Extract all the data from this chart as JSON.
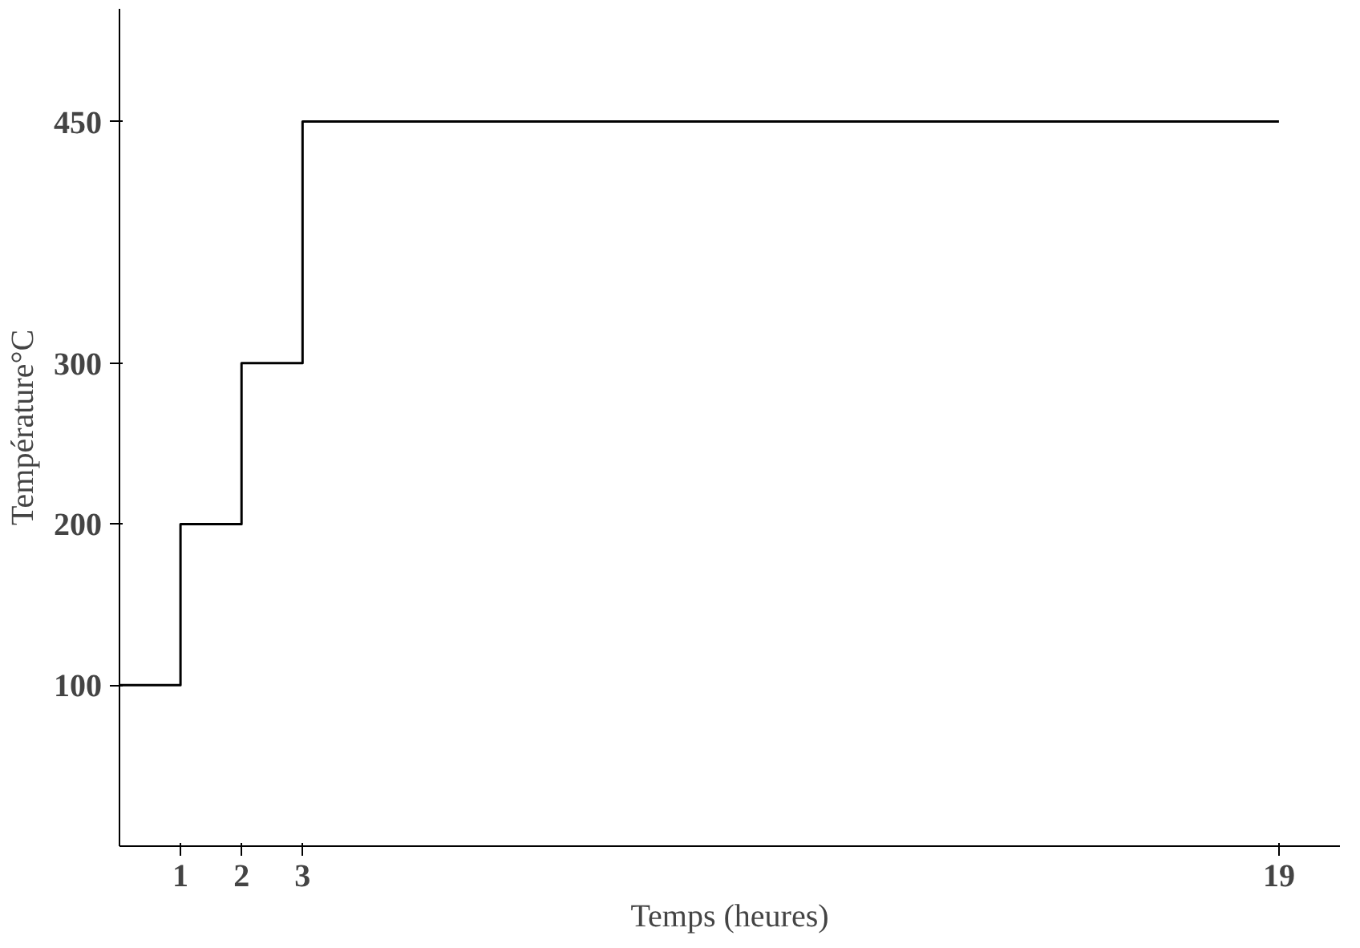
{
  "chart_data": {
    "type": "step",
    "xlabel": "Temps (heures)",
    "ylabel": "Température°C",
    "x": [
      0,
      1,
      2,
      3,
      19
    ],
    "values": [
      100,
      200,
      300,
      450,
      450
    ],
    "color": "#000000",
    "xlim": [
      0,
      20
    ],
    "ylim": [
      0,
      520
    ],
    "xticks": [
      1,
      2,
      3,
      19
    ],
    "yticks": [
      100,
      200,
      300,
      450
    ],
    "grid": false,
    "marker": "none",
    "line_style": "solid"
  }
}
